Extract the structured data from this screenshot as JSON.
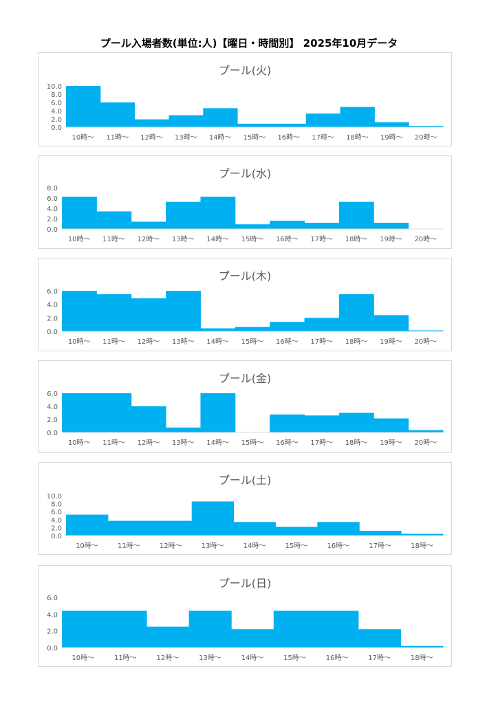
{
  "page_title": "プール入場者数(単位:人)【曜日・時間別】 2025年10月データ",
  "colors": {
    "bar": "#00B0F0",
    "axis": "#d9d9d9",
    "text": "#595959"
  },
  "chart_data": [
    {
      "type": "bar",
      "title": "プール(火)",
      "categories": [
        "10時～",
        "11時～",
        "12時～",
        "13時～",
        "14時～",
        "15時～",
        "16時～",
        "17時～",
        "18時～",
        "19時～",
        "20時～"
      ],
      "values": [
        10.0,
        6.0,
        1.9,
        2.9,
        4.6,
        0.85,
        0.85,
        3.3,
        4.9,
        1.2,
        0.3
      ],
      "ylim": [
        0,
        10
      ],
      "yticks": [
        "0.0",
        "2.0",
        "4.0",
        "6.0",
        "8.0",
        "10.0"
      ],
      "xlabel": "",
      "ylabel": ""
    },
    {
      "type": "bar",
      "title": "プール(水)",
      "categories": [
        "10時～",
        "11時～",
        "12時～",
        "13時～",
        "14時～",
        "15時～",
        "16時～",
        "17時～",
        "18時～",
        "19時～",
        "20時～"
      ],
      "values": [
        6.25,
        3.4,
        1.4,
        5.25,
        6.25,
        0.9,
        1.6,
        1.2,
        5.25,
        1.2,
        0
      ],
      "ylim": [
        0,
        8
      ],
      "yticks": [
        "0.0",
        "2.0",
        "4.0",
        "6.0",
        "8.0"
      ],
      "xlabel": "",
      "ylabel": ""
    },
    {
      "type": "bar",
      "title": "プール(木)",
      "categories": [
        "10時～",
        "11時～",
        "12時～",
        "13時～",
        "14時～",
        "15時～",
        "16時～",
        "17時～",
        "18時～",
        "19時～",
        "20時～"
      ],
      "values": [
        6.0,
        5.5,
        4.9,
        6.0,
        0.45,
        0.65,
        1.4,
        2.0,
        5.5,
        2.4,
        0.15
      ],
      "ylim": [
        0,
        6
      ],
      "yticks": [
        "0.0",
        "2.0",
        "4.0",
        "6.0"
      ],
      "xlabel": "",
      "ylabel": ""
    },
    {
      "type": "bar",
      "title": "プール(金)",
      "categories": [
        "10時～",
        "11時～",
        "12時～",
        "13時～",
        "14時～",
        "15時～",
        "16時～",
        "17時～",
        "18時～",
        "19時～",
        "20時～"
      ],
      "values": [
        6.0,
        6.0,
        4.0,
        0.75,
        6.0,
        0,
        2.75,
        2.6,
        3.0,
        2.15,
        0.35
      ],
      "ylim": [
        0,
        6
      ],
      "yticks": [
        "0.0",
        "2.0",
        "4.0",
        "6.0"
      ],
      "xlabel": "",
      "ylabel": ""
    },
    {
      "type": "bar",
      "title": "プール(土)",
      "categories": [
        "10時～",
        "11時～",
        "12時～",
        "13時～",
        "14時～",
        "15時～",
        "16時～",
        "17時～",
        "18時～"
      ],
      "values": [
        5.25,
        3.7,
        3.7,
        8.55,
        3.4,
        2.2,
        3.4,
        1.2,
        0.45
      ],
      "ylim": [
        0,
        10
      ],
      "yticks": [
        "0.0",
        "2.0",
        "4.0",
        "6.0",
        "8.0",
        "10.0"
      ],
      "xlabel": "",
      "ylabel": ""
    },
    {
      "type": "bar",
      "title": "プール(日)",
      "categories": [
        "10時～",
        "11時～",
        "12時～",
        "13時～",
        "14時～",
        "15時～",
        "16時～",
        "17時～",
        "18時～"
      ],
      "values": [
        4.4,
        4.4,
        2.5,
        4.4,
        2.2,
        4.4,
        4.4,
        2.2,
        0.2
      ],
      "ylim": [
        0,
        6
      ],
      "yticks": [
        "0.0",
        "2.0",
        "4.0",
        "6.0"
      ],
      "xlabel": "",
      "ylabel": ""
    }
  ]
}
